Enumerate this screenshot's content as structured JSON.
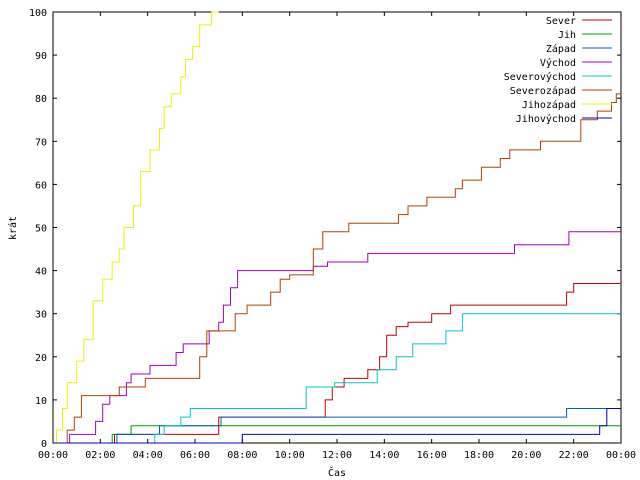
{
  "chart_data": {
    "type": "line",
    "title": "",
    "xlabel": "Čas",
    "ylabel": "krát",
    "xlim": [
      0,
      24
    ],
    "ylim": [
      0,
      100
    ],
    "x_ticks": [
      "00:00",
      "02:00",
      "04:00",
      "06:00",
      "08:00",
      "10:00",
      "12:00",
      "14:00",
      "16:00",
      "18:00",
      "20:00",
      "22:00",
      "00:00"
    ],
    "y_ticks": [
      "0",
      "10",
      "20",
      "30",
      "40",
      "50",
      "60",
      "70",
      "80",
      "90",
      "100"
    ],
    "grid": false,
    "legend_position": "top-right",
    "series": [
      {
        "name": "Sever",
        "color": "#c00000",
        "points": [
          [
            0,
            0
          ],
          [
            2.6,
            0
          ],
          [
            2.6,
            2
          ],
          [
            7.0,
            2
          ],
          [
            7.0,
            6
          ],
          [
            11.5,
            6
          ],
          [
            11.5,
            10
          ],
          [
            11.8,
            10
          ],
          [
            11.8,
            13
          ],
          [
            12.3,
            13
          ],
          [
            12.3,
            15
          ],
          [
            13.3,
            15
          ],
          [
            13.3,
            17
          ],
          [
            13.8,
            17
          ],
          [
            13.8,
            20
          ],
          [
            14.1,
            20
          ],
          [
            14.1,
            25
          ],
          [
            14.5,
            25
          ],
          [
            14.5,
            27
          ],
          [
            15.0,
            27
          ],
          [
            15.0,
            28
          ],
          [
            16.0,
            28
          ],
          [
            16.0,
            30
          ],
          [
            16.8,
            30
          ],
          [
            16.8,
            32
          ],
          [
            21.7,
            32
          ],
          [
            21.7,
            35
          ],
          [
            22.0,
            35
          ],
          [
            22.0,
            37
          ],
          [
            24,
            37
          ]
        ]
      },
      {
        "name": "Jih",
        "color": "#00a000",
        "points": [
          [
            0,
            0
          ],
          [
            2.5,
            0
          ],
          [
            2.5,
            2
          ],
          [
            3.3,
            2
          ],
          [
            3.3,
            4
          ],
          [
            24,
            4
          ]
        ]
      },
      {
        "name": "Západ",
        "color": "#0060b0",
        "points": [
          [
            0,
            0
          ],
          [
            2.7,
            0
          ],
          [
            2.7,
            2
          ],
          [
            4.5,
            2
          ],
          [
            4.5,
            4
          ],
          [
            7.1,
            4
          ],
          [
            7.1,
            6
          ],
          [
            21.7,
            6
          ],
          [
            21.7,
            8
          ],
          [
            24,
            8
          ]
        ]
      },
      {
        "name": "Východ",
        "color": "#a000c0",
        "points": [
          [
            0,
            0
          ],
          [
            0.7,
            0
          ],
          [
            0.7,
            2
          ],
          [
            1.8,
            2
          ],
          [
            1.8,
            5
          ],
          [
            2.1,
            5
          ],
          [
            2.1,
            9
          ],
          [
            2.4,
            9
          ],
          [
            2.4,
            11
          ],
          [
            3.1,
            11
          ],
          [
            3.1,
            14
          ],
          [
            3.3,
            14
          ],
          [
            3.3,
            16
          ],
          [
            4.1,
            16
          ],
          [
            4.1,
            18
          ],
          [
            5.2,
            18
          ],
          [
            5.2,
            21
          ],
          [
            5.5,
            21
          ],
          [
            5.5,
            23
          ],
          [
            6.6,
            23
          ],
          [
            6.6,
            26
          ],
          [
            7.0,
            26
          ],
          [
            7.0,
            28
          ],
          [
            7.2,
            28
          ],
          [
            7.2,
            32
          ],
          [
            7.5,
            32
          ],
          [
            7.5,
            36
          ],
          [
            7.8,
            36
          ],
          [
            7.8,
            40
          ],
          [
            11.0,
            40
          ],
          [
            11.0,
            41
          ],
          [
            11.6,
            41
          ],
          [
            11.6,
            42
          ],
          [
            13.3,
            42
          ],
          [
            13.3,
            44
          ],
          [
            19.5,
            44
          ],
          [
            19.5,
            46
          ],
          [
            21.8,
            46
          ],
          [
            21.8,
            49
          ],
          [
            24,
            49
          ]
        ]
      },
      {
        "name": "Severovýchod",
        "color": "#00c8c8",
        "points": [
          [
            0,
            0
          ],
          [
            4.3,
            0
          ],
          [
            4.3,
            2
          ],
          [
            4.7,
            2
          ],
          [
            4.7,
            4
          ],
          [
            5.4,
            4
          ],
          [
            5.4,
            6
          ],
          [
            5.8,
            6
          ],
          [
            5.8,
            8
          ],
          [
            10.7,
            8
          ],
          [
            10.7,
            13
          ],
          [
            11.9,
            13
          ],
          [
            11.9,
            14
          ],
          [
            13.7,
            14
          ],
          [
            13.7,
            17
          ],
          [
            14.5,
            17
          ],
          [
            14.5,
            20
          ],
          [
            15.2,
            20
          ],
          [
            15.2,
            23
          ],
          [
            16.6,
            23
          ],
          [
            16.6,
            26
          ],
          [
            17.3,
            26
          ],
          [
            17.3,
            30
          ],
          [
            24,
            30
          ]
        ]
      },
      {
        "name": "Severozápad",
        "color": "#b04000",
        "points": [
          [
            0,
            0
          ],
          [
            0.6,
            0
          ],
          [
            0.6,
            3
          ],
          [
            0.9,
            3
          ],
          [
            0.9,
            6
          ],
          [
            1.2,
            6
          ],
          [
            1.2,
            11
          ],
          [
            2.8,
            11
          ],
          [
            2.8,
            13
          ],
          [
            3.9,
            13
          ],
          [
            3.9,
            15
          ],
          [
            6.2,
            15
          ],
          [
            6.2,
            20
          ],
          [
            6.5,
            20
          ],
          [
            6.5,
            26
          ],
          [
            7.7,
            26
          ],
          [
            7.7,
            30
          ],
          [
            8.2,
            30
          ],
          [
            8.2,
            32
          ],
          [
            9.2,
            32
          ],
          [
            9.2,
            35
          ],
          [
            9.6,
            35
          ],
          [
            9.6,
            38
          ],
          [
            10.0,
            38
          ],
          [
            10.0,
            39
          ],
          [
            11.0,
            39
          ],
          [
            11.0,
            45
          ],
          [
            11.4,
            45
          ],
          [
            11.4,
            49
          ],
          [
            12.5,
            49
          ],
          [
            12.5,
            51
          ],
          [
            14.6,
            51
          ],
          [
            14.6,
            53
          ],
          [
            15.0,
            53
          ],
          [
            15.0,
            55
          ],
          [
            15.8,
            55
          ],
          [
            15.8,
            57
          ],
          [
            17.0,
            57
          ],
          [
            17.0,
            59
          ],
          [
            17.3,
            59
          ],
          [
            17.3,
            61
          ],
          [
            18.1,
            61
          ],
          [
            18.1,
            64
          ],
          [
            18.9,
            64
          ],
          [
            18.9,
            66
          ],
          [
            19.3,
            66
          ],
          [
            19.3,
            68
          ],
          [
            20.6,
            68
          ],
          [
            20.6,
            70
          ],
          [
            22.3,
            70
          ],
          [
            22.3,
            75
          ],
          [
            23.0,
            75
          ],
          [
            23.0,
            77
          ],
          [
            23.6,
            77
          ],
          [
            23.6,
            79
          ],
          [
            23.8,
            79
          ],
          [
            23.8,
            81
          ],
          [
            24,
            81
          ]
        ]
      },
      {
        "name": "Jihozápad",
        "color": "#f0f000",
        "points": [
          [
            0,
            0
          ],
          [
            0.15,
            0
          ],
          [
            0.15,
            3
          ],
          [
            0.4,
            3
          ],
          [
            0.4,
            8
          ],
          [
            0.6,
            8
          ],
          [
            0.6,
            14
          ],
          [
            1.0,
            14
          ],
          [
            1.0,
            19
          ],
          [
            1.3,
            19
          ],
          [
            1.3,
            24
          ],
          [
            1.7,
            24
          ],
          [
            1.7,
            33
          ],
          [
            2.1,
            33
          ],
          [
            2.1,
            38
          ],
          [
            2.5,
            38
          ],
          [
            2.5,
            42
          ],
          [
            2.8,
            42
          ],
          [
            2.8,
            45
          ],
          [
            3.0,
            45
          ],
          [
            3.0,
            50
          ],
          [
            3.4,
            50
          ],
          [
            3.4,
            55
          ],
          [
            3.7,
            55
          ],
          [
            3.7,
            63
          ],
          [
            4.1,
            63
          ],
          [
            4.1,
            68
          ],
          [
            4.5,
            68
          ],
          [
            4.5,
            73
          ],
          [
            4.7,
            73
          ],
          [
            4.7,
            78
          ],
          [
            5.0,
            78
          ],
          [
            5.0,
            81
          ],
          [
            5.4,
            81
          ],
          [
            5.4,
            85
          ],
          [
            5.6,
            85
          ],
          [
            5.6,
            89
          ],
          [
            5.9,
            89
          ],
          [
            5.9,
            92
          ],
          [
            6.2,
            92
          ],
          [
            6.2,
            97
          ],
          [
            6.7,
            97
          ],
          [
            6.7,
            100
          ],
          [
            7.0,
            100
          ]
        ]
      },
      {
        "name": "Jihovýchod",
        "color": "#0000c0",
        "points": [
          [
            0,
            0
          ],
          [
            8.0,
            0
          ],
          [
            8.0,
            2
          ],
          [
            23.1,
            2
          ],
          [
            23.1,
            4
          ],
          [
            23.4,
            4
          ],
          [
            23.4,
            8
          ],
          [
            24,
            8
          ]
        ]
      }
    ]
  }
}
